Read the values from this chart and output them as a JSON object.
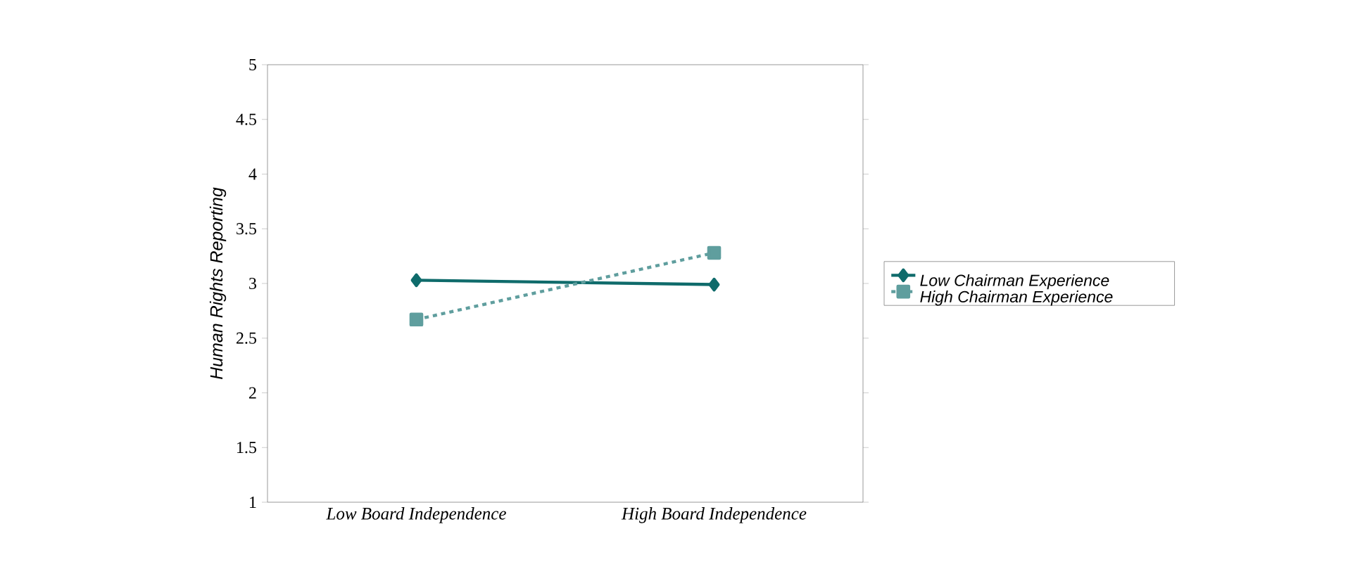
{
  "chart_data": {
    "type": "line",
    "ylabel": "Human Rights Reporting",
    "categories": [
      "Low Board Independence",
      "High Board Independence"
    ],
    "ylim": [
      1,
      5
    ],
    "yticks": [
      1,
      1.5,
      2,
      2.5,
      3,
      3.5,
      4,
      4.5,
      5
    ],
    "legend": "right",
    "grid": false,
    "series": [
      {
        "name": "Low Chairman Experience",
        "color": "#0f6b6b",
        "values": [
          3.03,
          2.99
        ],
        "marker": "diamond",
        "line_style": "solid"
      },
      {
        "name": "High Chairman Experience",
        "color": "#5f9e9e",
        "values": [
          2.67,
          3.28
        ],
        "marker": "square",
        "line_style": "dashed"
      }
    ]
  }
}
